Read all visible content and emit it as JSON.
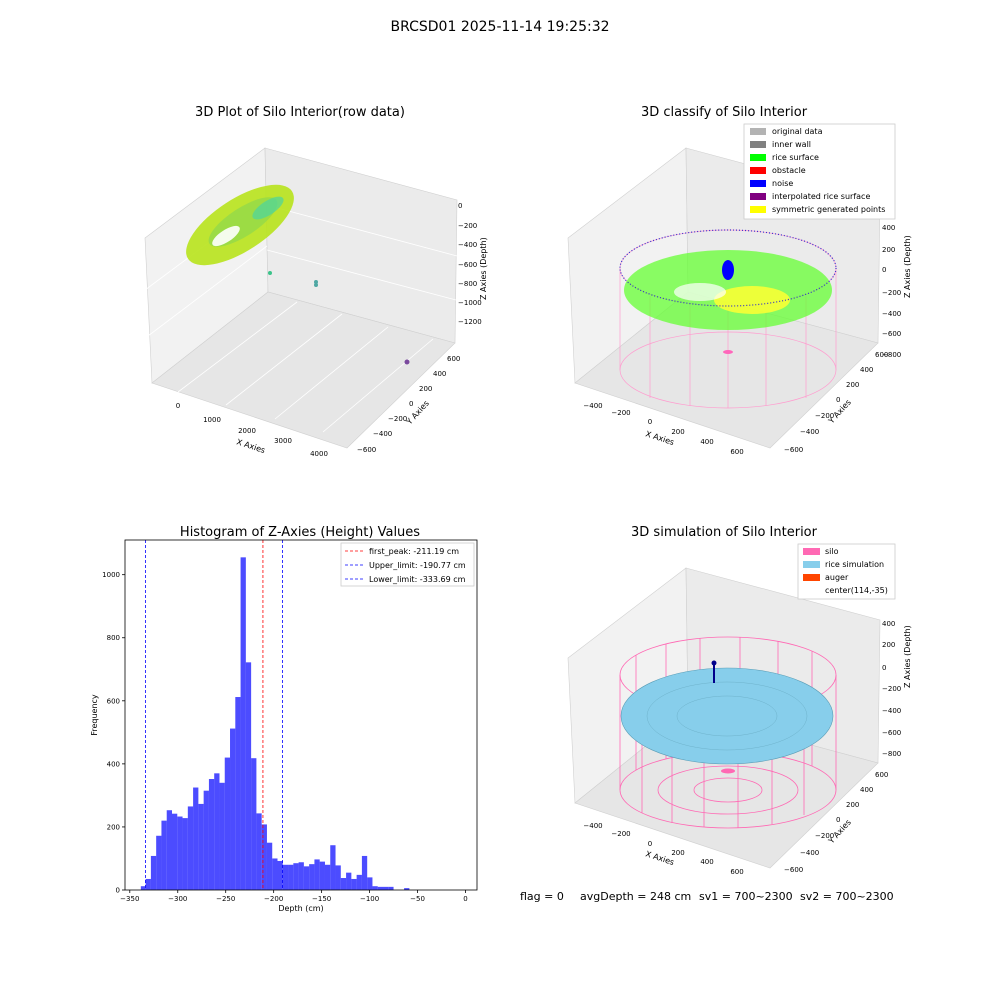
{
  "suptitle": "BRCSD01 2025-11-14 19:25:32",
  "panel1": {
    "title": "3D Plot of Silo Interior(row data)",
    "xlabel": "X Axies",
    "ylabel": "Y Axies",
    "zlabel": "Z Axies (Depth)",
    "xticks": [
      "0",
      "1000",
      "2000",
      "3000",
      "4000"
    ],
    "yticks": [
      "600",
      "400",
      "200",
      "0",
      "−200",
      "−400",
      "−600"
    ],
    "zticks": [
      "0",
      "−200",
      "−400",
      "−600",
      "−800",
      "−1000",
      "−1200"
    ]
  },
  "panel2": {
    "title": "3D classify of Silo Interior",
    "xlabel": "X Axies",
    "ylabel": "Y Axies",
    "zlabel": "Z Axies (Depth)",
    "xticks": [
      "−400",
      "−200",
      "0",
      "200",
      "400",
      "600"
    ],
    "yticks": [
      "600",
      "400",
      "200",
      "0",
      "−200",
      "−400",
      "−600"
    ],
    "zticks": [
      "400",
      "200",
      "0",
      "−200",
      "−400",
      "−600",
      "−800"
    ],
    "legend": [
      {
        "label": "original data",
        "color": "#b3b3b3"
      },
      {
        "label": "inner wall",
        "color": "#808080"
      },
      {
        "label": "rice surface",
        "color": "#00ff00"
      },
      {
        "label": "obstacle",
        "color": "#ff0000"
      },
      {
        "label": "noise",
        "color": "#0000ff"
      },
      {
        "label": "interpolated rice surface",
        "color": "#800080"
      },
      {
        "label": "symmetric generated points",
        "color": "#ffff00"
      }
    ]
  },
  "panel3": {
    "title": "3D simulation of Silo Interior",
    "xlabel": "X Axies",
    "ylabel": "Y Axies",
    "zlabel": "Z Axies (Depth)",
    "xticks": [
      "−400",
      "−200",
      "0",
      "200",
      "400",
      "600"
    ],
    "yticks": [
      "600",
      "400",
      "200",
      "0",
      "−200",
      "−400",
      "−600"
    ],
    "zticks": [
      "400",
      "200",
      "0",
      "−200",
      "−400",
      "−600",
      "−800"
    ],
    "legend": [
      {
        "label": "silo",
        "color": "#ff69b4"
      },
      {
        "label": "rice simulation",
        "color": "#87ceeb"
      },
      {
        "label": "auger",
        "color": "#ff4500"
      },
      {
        "label": "center(114,-35)",
        "color": ""
      }
    ]
  },
  "status": {
    "flag": "flag = 0",
    "avg": "avgDepth = 248 cm",
    "sv1": "sv1 = 700~2300",
    "sv2": "sv2 = 700~2300"
  },
  "chart_data": [
    {
      "type": "bar",
      "title": "Histogram of Z-Axies (Height) Values",
      "xlabel": "Depth (cm)",
      "ylabel": "Frequency",
      "xlim": [
        -355,
        12
      ],
      "ylim": [
        0,
        1110
      ],
      "xticks": [
        -350,
        -300,
        -250,
        -200,
        -150,
        -100,
        -50,
        0
      ],
      "yticks": [
        0,
        200,
        400,
        600,
        800,
        1000
      ],
      "bar_color": "#0000ff",
      "bins": [
        {
          "x0": -338.5,
          "x1": -333.5,
          "y": 12
        },
        {
          "x0": -333.5,
          "x1": -328.0,
          "y": 35
        },
        {
          "x0": -328.0,
          "x1": -322.5,
          "y": 108
        },
        {
          "x0": -322.5,
          "x1": -317.0,
          "y": 172
        },
        {
          "x0": -317.0,
          "x1": -311.5,
          "y": 220
        },
        {
          "x0": -311.5,
          "x1": -306.0,
          "y": 253
        },
        {
          "x0": -306.0,
          "x1": -300.5,
          "y": 242
        },
        {
          "x0": -300.5,
          "x1": -295.0,
          "y": 233
        },
        {
          "x0": -295.0,
          "x1": -289.5,
          "y": 228
        },
        {
          "x0": -289.5,
          "x1": -284.0,
          "y": 265
        },
        {
          "x0": -284.0,
          "x1": -278.5,
          "y": 325
        },
        {
          "x0": -278.5,
          "x1": -273.0,
          "y": 273
        },
        {
          "x0": -273.0,
          "x1": -267.5,
          "y": 315
        },
        {
          "x0": -267.5,
          "x1": -262.0,
          "y": 352
        },
        {
          "x0": -262.0,
          "x1": -256.5,
          "y": 370
        },
        {
          "x0": -256.5,
          "x1": -251.0,
          "y": 340
        },
        {
          "x0": -251.0,
          "x1": -245.5,
          "y": 420
        },
        {
          "x0": -245.5,
          "x1": -240.0,
          "y": 512
        },
        {
          "x0": -240.0,
          "x1": -234.5,
          "y": 612
        },
        {
          "x0": -234.5,
          "x1": -229.0,
          "y": 1055
        },
        {
          "x0": -229.0,
          "x1": -223.5,
          "y": 722
        },
        {
          "x0": -223.5,
          "x1": -218.0,
          "y": 418
        },
        {
          "x0": -218.0,
          "x1": -212.5,
          "y": 243
        },
        {
          "x0": -212.5,
          "x1": -207.0,
          "y": 208
        },
        {
          "x0": -207.0,
          "x1": -201.5,
          "y": 150
        },
        {
          "x0": -201.5,
          "x1": -196.0,
          "y": 100
        },
        {
          "x0": -196.0,
          "x1": -190.5,
          "y": 92
        },
        {
          "x0": -190.5,
          "x1": -185.0,
          "y": 80
        },
        {
          "x0": -185.0,
          "x1": -179.5,
          "y": 80
        },
        {
          "x0": -179.5,
          "x1": -174.0,
          "y": 85
        },
        {
          "x0": -174.0,
          "x1": -168.5,
          "y": 88
        },
        {
          "x0": -168.5,
          "x1": -163.0,
          "y": 75
        },
        {
          "x0": -163.0,
          "x1": -157.5,
          "y": 82
        },
        {
          "x0": -157.5,
          "x1": -152.0,
          "y": 97
        },
        {
          "x0": -152.0,
          "x1": -146.5,
          "y": 90
        },
        {
          "x0": -146.5,
          "x1": -141.0,
          "y": 80
        },
        {
          "x0": -141.0,
          "x1": -135.5,
          "y": 142
        },
        {
          "x0": -135.5,
          "x1": -130.0,
          "y": 78
        },
        {
          "x0": -130.0,
          "x1": -124.5,
          "y": 38
        },
        {
          "x0": -124.5,
          "x1": -119.0,
          "y": 55
        },
        {
          "x0": -119.0,
          "x1": -113.5,
          "y": 35
        },
        {
          "x0": -113.5,
          "x1": -108.0,
          "y": 48
        },
        {
          "x0": -108.0,
          "x1": -102.5,
          "y": 108
        },
        {
          "x0": -102.5,
          "x1": -97.0,
          "y": 40
        },
        {
          "x0": -97.0,
          "x1": -91.5,
          "y": 12
        },
        {
          "x0": -91.5,
          "x1": -86.0,
          "y": 10
        },
        {
          "x0": -86.0,
          "x1": -80.5,
          "y": 10
        },
        {
          "x0": -80.5,
          "x1": -75.0,
          "y": 10
        },
        {
          "x0": -75.0,
          "x1": -69.5,
          "y": 0
        },
        {
          "x0": -69.5,
          "x1": -64.0,
          "y": 0
        },
        {
          "x0": -64.0,
          "x1": -58.5,
          "y": 6
        }
      ],
      "vlines": [
        {
          "label": "first_peak: -211.19 cm",
          "x": -211.19,
          "color": "#ff0000"
        },
        {
          "label": "Upper_limit: -190.77 cm",
          "x": -190.77,
          "color": "#0000ff"
        },
        {
          "label": "Lower_limit: -333.69 cm",
          "x": -333.69,
          "color": "#0000ff"
        }
      ],
      "legend_position": "top-right"
    }
  ]
}
